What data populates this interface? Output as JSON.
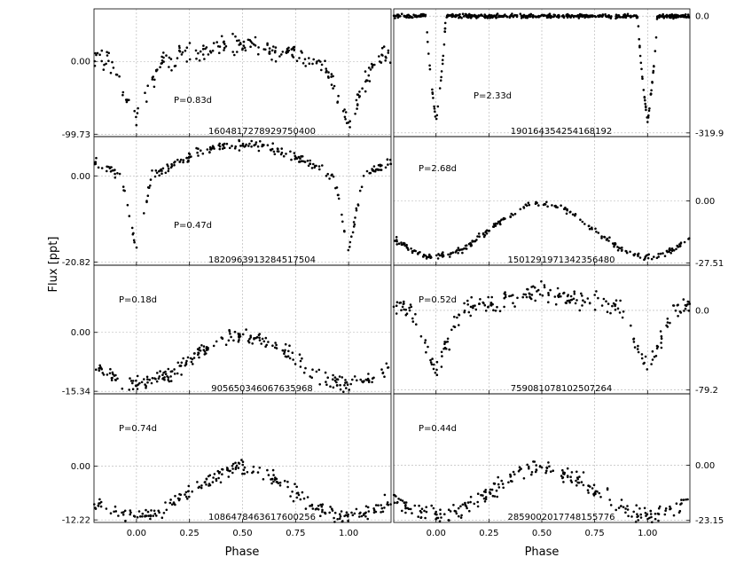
{
  "figure": {
    "ylabel": "Flux [ppt]",
    "xlabel": "Phase",
    "xticks": [
      0.0,
      0.25,
      0.5,
      0.75,
      1.0
    ],
    "xtick_labels": [
      "0.00",
      "0.25",
      "0.50",
      "0.75",
      "1.00"
    ],
    "xlim": [
      -0.2,
      1.2
    ]
  },
  "chart_data": [
    {
      "type": "scatter",
      "id": "1604817278929750400",
      "period_label": "P=0.83d",
      "column": "left",
      "row": 0,
      "yticks": [
        0.0,
        -99.73
      ],
      "ytick_labels": [
        "0.00",
        "-99.73"
      ],
      "ylim": [
        -103,
        72
      ],
      "shape": "ew",
      "depth": 95,
      "noise": 14
    },
    {
      "type": "scatter",
      "id": "190164354254168192",
      "period_label": "P=2.33d",
      "column": "right",
      "row": 0,
      "yticks": [
        0.0,
        -319.9
      ],
      "ytick_labels": [
        "0.0",
        "-319.9"
      ],
      "ylim": [
        -330,
        20
      ],
      "shape": "ea",
      "depth": 290,
      "noise": 5
    },
    {
      "type": "scatter",
      "id": "1820963913284517504",
      "period_label": "P=0.47d",
      "column": "left",
      "row": 1,
      "yticks": [
        0.0,
        -20.82
      ],
      "ytick_labels": [
        "0.00",
        "-20.82"
      ],
      "ylim": [
        -21.6,
        9.5
      ],
      "shape": "ell",
      "depth": 19,
      "noise": 1.2
    },
    {
      "type": "scatter",
      "id": "1501291971342356480",
      "period_label": "P=2.68d",
      "column": "right",
      "row": 1,
      "yticks": [
        0.0,
        -27.51
      ],
      "ytick_labels": [
        "0.00",
        "-27.51"
      ],
      "ylim": [
        -28.5,
        28.5
      ],
      "shape": "sin",
      "depth": 26,
      "noise": 1.3
    },
    {
      "type": "scatter",
      "id": "905650346067635968",
      "period_label": "P=0.18d",
      "column": "left",
      "row": 2,
      "yticks": [
        0.0,
        -15.34
      ],
      "ytick_labels": [
        "0.00",
        "-15.34"
      ],
      "ylim": [
        -16.0,
        17.5
      ],
      "shape": "sin",
      "depth": 14,
      "noise": 2.0
    },
    {
      "type": "scatter",
      "id": "759081078102507264",
      "period_label": "P=0.52d",
      "column": "right",
      "row": 2,
      "yticks": [
        0.0,
        -79.2
      ],
      "ytick_labels": [
        "0.0",
        "-79.2"
      ],
      "ylim": [
        -83,
        45
      ],
      "shape": "ew",
      "depth": 70,
      "noise": 9
    },
    {
      "type": "scatter",
      "id": "1086478463617600256",
      "period_label": "P=0.74d",
      "column": "left",
      "row": 3,
      "yticks": [
        0.0,
        -12.22
      ],
      "ytick_labels": [
        "0.00",
        "-12.22"
      ],
      "ylim": [
        -12.8,
        16.5
      ],
      "shape": "sin",
      "depth": 12,
      "noise": 1.8
    },
    {
      "type": "scatter",
      "id": "2859002017748155776",
      "period_label": "P=0.44d",
      "column": "right",
      "row": 3,
      "yticks": [
        0.0,
        -23.15
      ],
      "ytick_labels": [
        "0.00",
        "-23.15"
      ],
      "ylim": [
        -24,
        30
      ],
      "shape": "sin",
      "depth": 22,
      "noise": 3.5
    }
  ]
}
